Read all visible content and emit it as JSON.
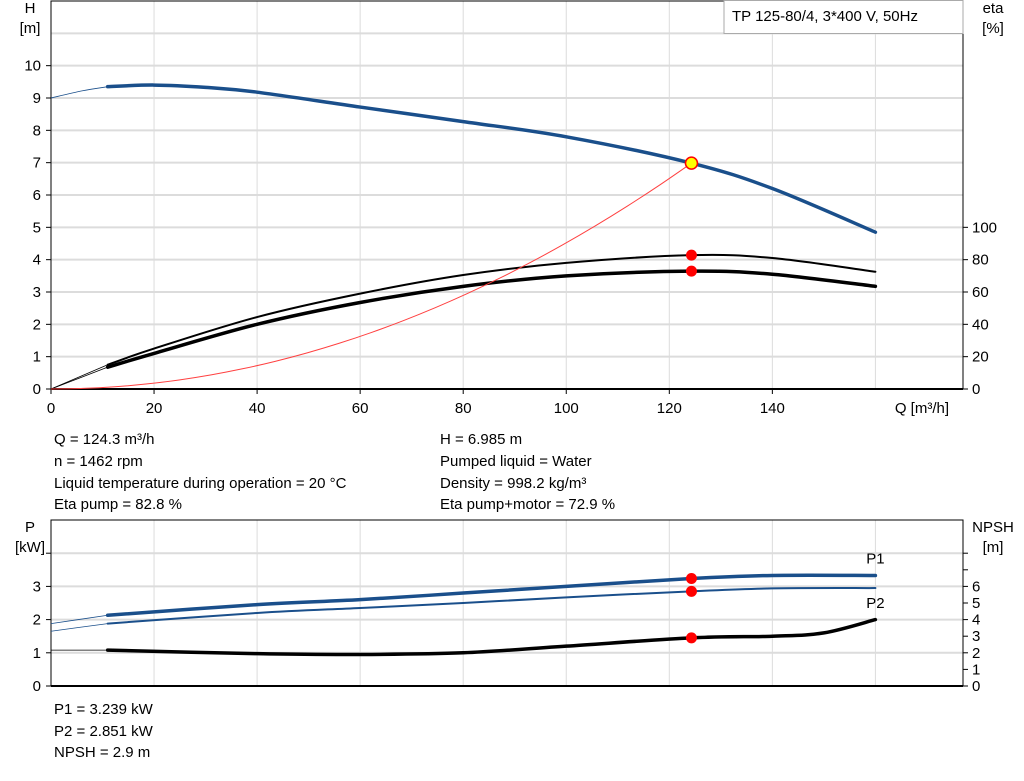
{
  "chart_data": [
    {
      "type": "line",
      "title": "TP 125-80/4, 3*400 V, 50Hz",
      "xlabel": "Q [m³/h]",
      "ylabel": "H",
      "ylabel_unit": "[m]",
      "y2label": "eta",
      "y2label_unit": "[%]",
      "xlim": [
        0,
        177
      ],
      "ylim": [
        0,
        12
      ],
      "y2lim": [
        0,
        240
      ],
      "grid": true,
      "x_ticks": [
        0,
        20,
        40,
        60,
        80,
        100,
        120,
        140
      ],
      "y_ticks": [
        0,
        1,
        2,
        3,
        4,
        5,
        6,
        7,
        8,
        9,
        10
      ],
      "y2_ticks": [
        0,
        20,
        40,
        60,
        80,
        100
      ],
      "series": [
        {
          "id": "H",
          "axis": "left",
          "color": "#1a4f8b",
          "extrapolated": [
            [
              0,
              9.0
            ],
            [
              6,
              9.22
            ],
            [
              11,
              9.35
            ]
          ],
          "points": [
            [
              11,
              9.35
            ],
            [
              20,
              9.4
            ],
            [
              30,
              9.33
            ],
            [
              40,
              9.18
            ],
            [
              60,
              8.72
            ],
            [
              80,
              8.27
            ],
            [
              100,
              7.8
            ],
            [
              124.3,
              6.985
            ],
            [
              140,
              6.2
            ],
            [
              160,
              4.85
            ]
          ]
        },
        {
          "id": "eta-pump",
          "axis": "right",
          "color": "#000000",
          "extrapolated": [
            [
              0,
              0
            ],
            [
              11,
              15
            ]
          ],
          "points": [
            [
              11,
              15
            ],
            [
              20,
              25
            ],
            [
              40,
              44.5
            ],
            [
              60,
              59
            ],
            [
              80,
              70.5
            ],
            [
              100,
              78
            ],
            [
              124.3,
              82.8
            ],
            [
              140,
              81
            ],
            [
              160,
              72.5
            ]
          ]
        },
        {
          "id": "eta-pump-motor",
          "axis": "right",
          "color": "#000000",
          "extrapolated": [
            [
              0,
              0
            ],
            [
              11,
              13.5
            ]
          ],
          "points": [
            [
              11,
              13.5
            ],
            [
              20,
              22
            ],
            [
              40,
              40
            ],
            [
              60,
              53.5
            ],
            [
              80,
              63.5
            ],
            [
              100,
              70
            ],
            [
              124.3,
              72.9
            ],
            [
              140,
              71
            ],
            [
              160,
              63.5
            ]
          ]
        },
        {
          "id": "system-curve",
          "axis": "left",
          "color": "#ff4040",
          "quadratic_through": [
            124.3,
            6.985
          ]
        }
      ],
      "duty_points": [
        {
          "series": "H",
          "x": 124.3,
          "y": 6.985,
          "fill": "#ffff00",
          "stroke": "#ff0000"
        },
        {
          "series": "eta-pump",
          "x": 124.3,
          "y": 82.8,
          "fill": "#ff0000"
        },
        {
          "series": "eta-pump-motor",
          "x": 124.3,
          "y": 72.9,
          "fill": "#ff0000"
        }
      ]
    },
    {
      "type": "line",
      "ylabel": "P",
      "ylabel_unit": "[kW]",
      "y2label": "NPSH",
      "y2label_unit": "[m]",
      "xlim": [
        0,
        177
      ],
      "ylim": [
        0,
        5
      ],
      "y2lim": [
        0,
        10
      ],
      "grid": true,
      "y_ticks": [
        0,
        1,
        2,
        3
      ],
      "y_minor_ticks": [
        4
      ],
      "y2_ticks": [
        0,
        1,
        2,
        3,
        4,
        5,
        6
      ],
      "y2_minor_ticks": [
        7,
        8
      ],
      "series": [
        {
          "id": "P1",
          "name": "P1",
          "axis": "left",
          "color": "#1a4f8b",
          "width": 3.5,
          "extrapolated": [
            [
              0,
              1.88
            ],
            [
              11,
              2.13
            ]
          ],
          "points": [
            [
              11,
              2.13
            ],
            [
              40,
              2.45
            ],
            [
              60,
              2.6
            ],
            [
              80,
              2.8
            ],
            [
              100,
              3.0
            ],
            [
              124.3,
              3.239
            ],
            [
              140,
              3.33
            ],
            [
              160,
              3.33
            ]
          ]
        },
        {
          "id": "P2",
          "name": "P2",
          "axis": "left",
          "color": "#1a4f8b",
          "width": 2,
          "extrapolated": [
            [
              0,
              1.65
            ],
            [
              11,
              1.88
            ]
          ],
          "points": [
            [
              11,
              1.88
            ],
            [
              40,
              2.2
            ],
            [
              60,
              2.35
            ],
            [
              80,
              2.5
            ],
            [
              100,
              2.67
            ],
            [
              124.3,
              2.851
            ],
            [
              140,
              2.94
            ],
            [
              160,
              2.95
            ]
          ]
        },
        {
          "id": "NPSH",
          "axis": "right",
          "color": "#000000",
          "width": 3.5,
          "extrapolated": [
            [
              0,
              2.16
            ],
            [
              11,
              2.16
            ]
          ],
          "points": [
            [
              11,
              2.16
            ],
            [
              40,
              1.95
            ],
            [
              60,
              1.9
            ],
            [
              80,
              2.0
            ],
            [
              100,
              2.4
            ],
            [
              124.3,
              2.9
            ],
            [
              140,
              3.0
            ],
            [
              150,
              3.2
            ],
            [
              160,
              4.0
            ]
          ]
        }
      ],
      "duty_points": [
        {
          "series": "P1",
          "x": 124.3,
          "y": 3.239,
          "fill": "#ff0000"
        },
        {
          "series": "P2",
          "x": 124.3,
          "y": 2.851,
          "fill": "#ff0000"
        },
        {
          "series": "NPSH",
          "x": 124.3,
          "y": 2.9,
          "fill": "#ff0000"
        }
      ]
    }
  ],
  "info_top": {
    "left": [
      "Q = 124.3 m³/h",
      "n = 1462 rpm",
      "Liquid temperature during operation = 20 °C",
      "Eta pump = 82.8 %"
    ],
    "right": [
      "H = 6.985 m",
      "Pumped liquid = Water",
      "Density = 998.2 kg/m³",
      "Eta pump+motor = 72.9 %"
    ]
  },
  "info_bottom": [
    "P1 = 3.239 kW",
    "P2 = 2.851 kW",
    "NPSH = 2.9 m"
  ]
}
